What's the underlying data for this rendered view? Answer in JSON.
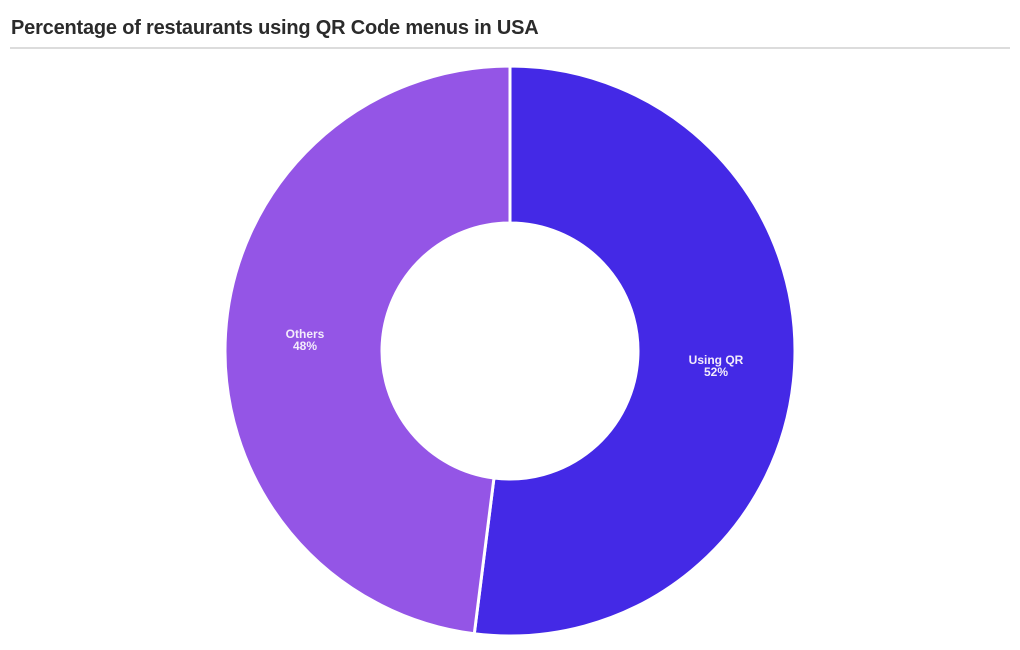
{
  "title": "Percentage of restaurants using QR Code menus in USA",
  "colors": {
    "using_qr": "#4429e6",
    "others": "#9455e6",
    "separator": "#ffffff"
  },
  "labels": {
    "using_qr": {
      "name": "Using QR",
      "value": "52%"
    },
    "others": {
      "name": "Others",
      "value": "48%"
    }
  },
  "chart_data": {
    "type": "pie",
    "subtype": "donut",
    "title": "Percentage of restaurants using QR Code menus in USA",
    "categories": [
      "Using QR",
      "Others"
    ],
    "values": [
      52,
      48
    ],
    "unit": "%",
    "colors": [
      "#4429e6",
      "#9455e6"
    ],
    "start_angle": "12 o'clock, clockwise",
    "legend": "none (data labels inside slices)"
  }
}
